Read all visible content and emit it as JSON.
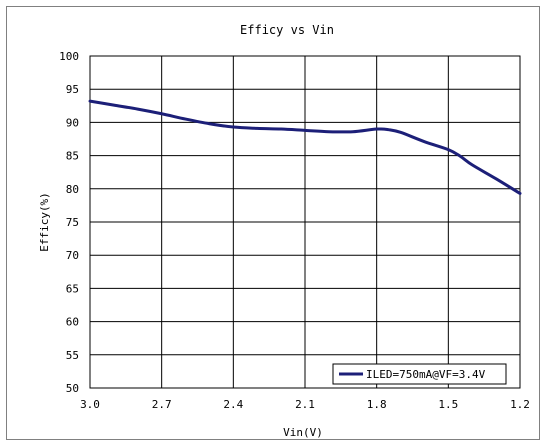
{
  "chart_data": {
    "type": "line",
    "title": "Efficy vs Vin",
    "xlabel": "Vin(V)",
    "ylabel": "Efficy(%)",
    "x_reversed": true,
    "xlim": [
      3.0,
      1.2
    ],
    "ylim": [
      50,
      100
    ],
    "x_ticks": [
      "3.0",
      "2.7",
      "2.4",
      "2.1",
      "1.8",
      "1.5",
      "1.2"
    ],
    "y_ticks": [
      "100",
      "95",
      "90",
      "85",
      "80",
      "75",
      "70",
      "65",
      "60",
      "55",
      "50"
    ],
    "grid": true,
    "legend_position": "bottom-right",
    "series": [
      {
        "name": "ILED=750mA@VF=3.4V",
        "color": "#1c1f78",
        "points": [
          [
            3.0,
            93.2
          ],
          [
            2.9,
            92.6
          ],
          [
            2.8,
            92.0
          ],
          [
            2.7,
            91.3
          ],
          [
            2.6,
            90.5
          ],
          [
            2.5,
            89.8
          ],
          [
            2.4,
            89.3
          ],
          [
            2.3,
            89.1
          ],
          [
            2.2,
            89.0
          ],
          [
            2.1,
            88.8
          ],
          [
            2.0,
            88.6
          ],
          [
            1.9,
            88.6
          ],
          [
            1.8,
            89.0
          ],
          [
            1.75,
            88.9
          ],
          [
            1.7,
            88.5
          ],
          [
            1.6,
            87.1
          ],
          [
            1.5,
            85.9
          ],
          [
            1.45,
            84.9
          ],
          [
            1.4,
            83.6
          ],
          [
            1.3,
            81.5
          ],
          [
            1.2,
            79.3
          ]
        ]
      }
    ]
  }
}
